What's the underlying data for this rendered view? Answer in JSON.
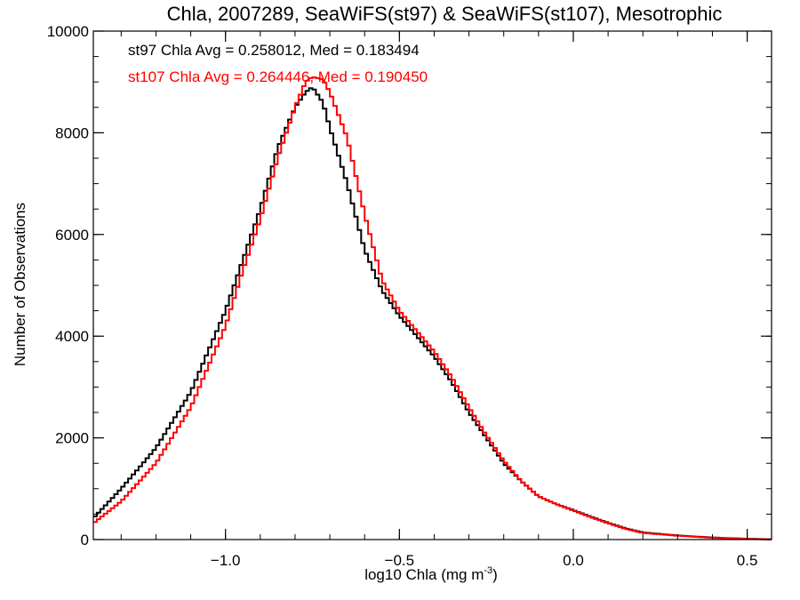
{
  "chart_data": {
    "type": "line",
    "title": "Chla, 2007289, SeaWiFS(st97) & SeaWiFS(st107), Mesotrophic",
    "xlabel_main": "log10 Chla (mg m",
    "xlabel_sup": "-3",
    "xlabel_close": ")",
    "ylabel": "Number of Observations",
    "xlim": [
      -1.38,
      0.57
    ],
    "ylim": [
      0,
      10000
    ],
    "x_ticks": [
      -1.0,
      -0.5,
      0.0,
      0.5
    ],
    "x_tick_labels": [
      "−1.0",
      "−0.5",
      "0.0",
      "0.5"
    ],
    "x_minor_step": 0.1,
    "y_ticks": [
      0,
      2000,
      4000,
      6000,
      8000,
      10000
    ],
    "y_tick_labels": [
      "0",
      "2000",
      "4000",
      "6000",
      "8000",
      "10000"
    ],
    "y_minor_step": 500,
    "grid": false,
    "step_style": "histogram",
    "annotations": [
      {
        "text": "st97 Chla Avg = 0.258012, Med = 0.183494",
        "color": "#000000"
      },
      {
        "text": "st107 Chla Avg = 0.264446, Med = 0.190450",
        "color": "#ff0000"
      }
    ],
    "series": [
      {
        "color": "#000000",
        "x": [
          -1.38,
          -1.3,
          -1.2,
          -1.1,
          -1.0,
          -0.95,
          -0.9,
          -0.85,
          -0.8,
          -0.77,
          -0.75,
          -0.72,
          -0.7,
          -0.65,
          -0.6,
          -0.55,
          -0.5,
          -0.45,
          -0.4,
          -0.35,
          -0.3,
          -0.25,
          -0.2,
          -0.15,
          -0.1,
          -0.05,
          0.0,
          0.05,
          0.1,
          0.15,
          0.2,
          0.3,
          0.4,
          0.5,
          0.57
        ],
        "y": [
          420,
          1000,
          1800,
          2900,
          4500,
          5500,
          6500,
          7700,
          8500,
          8800,
          8900,
          8600,
          8100,
          7000,
          5700,
          4900,
          4400,
          4000,
          3600,
          3100,
          2500,
          2000,
          1500,
          1150,
          850,
          700,
          580,
          450,
          330,
          220,
          140,
          80,
          40,
          15,
          5
        ]
      },
      {
        "color": "#ff0000",
        "x": [
          -1.38,
          -1.3,
          -1.2,
          -1.1,
          -1.0,
          -0.95,
          -0.9,
          -0.85,
          -0.8,
          -0.77,
          -0.75,
          -0.72,
          -0.7,
          -0.65,
          -0.6,
          -0.55,
          -0.5,
          -0.45,
          -0.4,
          -0.35,
          -0.3,
          -0.25,
          -0.2,
          -0.15,
          -0.1,
          -0.05,
          0.0,
          0.05,
          0.1,
          0.15,
          0.2,
          0.3,
          0.4,
          0.5,
          0.57
        ],
        "y": [
          320,
          750,
          1500,
          2600,
          4200,
          5300,
          6300,
          7500,
          8500,
          9000,
          9100,
          9050,
          8800,
          7900,
          6400,
          5100,
          4500,
          4100,
          3700,
          3200,
          2600,
          2050,
          1550,
          1150,
          850,
          700,
          570,
          440,
          320,
          210,
          130,
          75,
          35,
          12,
          4
        ]
      }
    ]
  }
}
